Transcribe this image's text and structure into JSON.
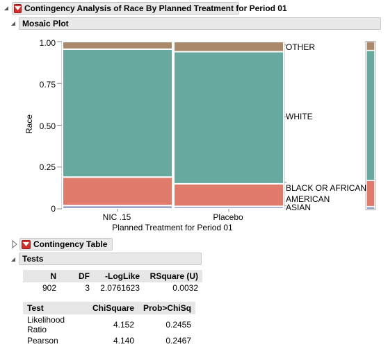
{
  "report": {
    "title": "Contingency Analysis of Race By Planned Treatment for Period 01"
  },
  "mosaic": {
    "title": "Mosaic Plot",
    "ylabel": "Race",
    "xlabel": "Planned Treatment for Period 01",
    "yticks": [
      "0",
      "0.25",
      "0.50",
      "0.75",
      "1.00"
    ],
    "right_labels": [
      "OTHER",
      "WHITE",
      "BLACK OR AFRICAN",
      "AMERICAN",
      "ASIAN"
    ]
  },
  "chart_data": {
    "type": "mosaic",
    "xlabel": "Planned Treatment for Period 01",
    "ylabel": "Race",
    "ylim": [
      0,
      1
    ],
    "categories": [
      "NIC .15",
      "Placebo"
    ],
    "column_widths": [
      0.5,
      0.5
    ],
    "series": [
      {
        "name": "ASIAN",
        "color": "#9aa5c9",
        "values": [
          0.02,
          0.015
        ]
      },
      {
        "name": "BLACK OR AFRICAN AMERICAN",
        "color": "#e07b6c",
        "values": [
          0.17,
          0.135
        ]
      },
      {
        "name": "WHITE",
        "color": "#68a99f",
        "values": [
          0.765,
          0.79
        ]
      },
      {
        "name": "OTHER",
        "color": "#a9896a",
        "values": [
          0.045,
          0.06
        ]
      }
    ],
    "marginal": [
      0.018,
      0.155,
      0.775,
      0.052
    ]
  },
  "contingency": {
    "title": "Contingency Table"
  },
  "tests": {
    "title": "Tests",
    "summary_headers": [
      "N",
      "DF",
      "-LogLike",
      "RSquare (U)"
    ],
    "summary_values": [
      "902",
      "3",
      "2.0761623",
      "0.0032"
    ],
    "test_headers": [
      "Test",
      "ChiSquare",
      "Prob>ChiSq"
    ],
    "test_rows": [
      [
        "Likelihood Ratio",
        "4.152",
        "0.2455"
      ],
      [
        "Pearson",
        "4.140",
        "0.2467"
      ]
    ]
  }
}
